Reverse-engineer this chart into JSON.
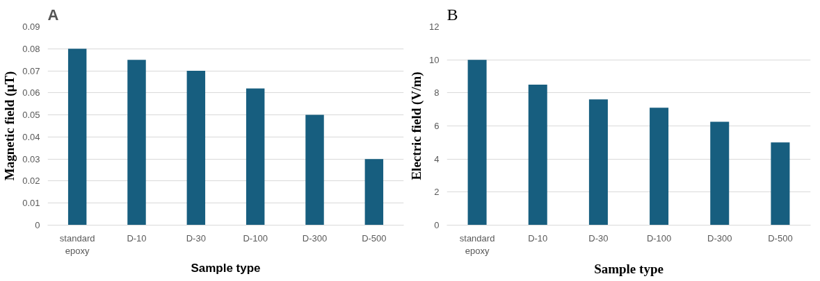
{
  "chart_data": [
    {
      "type": "bar",
      "title": "A",
      "xlabel": "Sample type",
      "ylabel": "Magnetic field (μT)",
      "categories": [
        "standard epoxy",
        "D-10",
        "D-30",
        "D-100",
        "D-300",
        "D-500"
      ],
      "series": [
        {
          "color": "#175e7f",
          "values": [
            0.08,
            0.075,
            0.07,
            0.062,
            0.05,
            0.03
          ]
        }
      ],
      "ylim": [
        0,
        0.09
      ],
      "yticks": [
        0,
        0.01,
        0.02,
        0.03,
        0.04,
        0.05,
        0.06,
        0.07,
        0.08,
        0.09
      ],
      "grid": "y"
    },
    {
      "type": "bar",
      "title": "B",
      "xlabel": "Sample type",
      "ylabel": "Electric field (V/m)",
      "categories": [
        "standard epoxy",
        "D-10",
        "D-30",
        "D-100",
        "D-300",
        "D-500"
      ],
      "series": [
        {
          "color": "#175e7f",
          "values": [
            10,
            8.5,
            7.6,
            7.1,
            6.25,
            5.0
          ]
        }
      ],
      "ylim": [
        0,
        12
      ],
      "yticks": [
        0,
        2,
        4,
        6,
        8,
        10,
        12
      ],
      "grid": "y"
    }
  ]
}
